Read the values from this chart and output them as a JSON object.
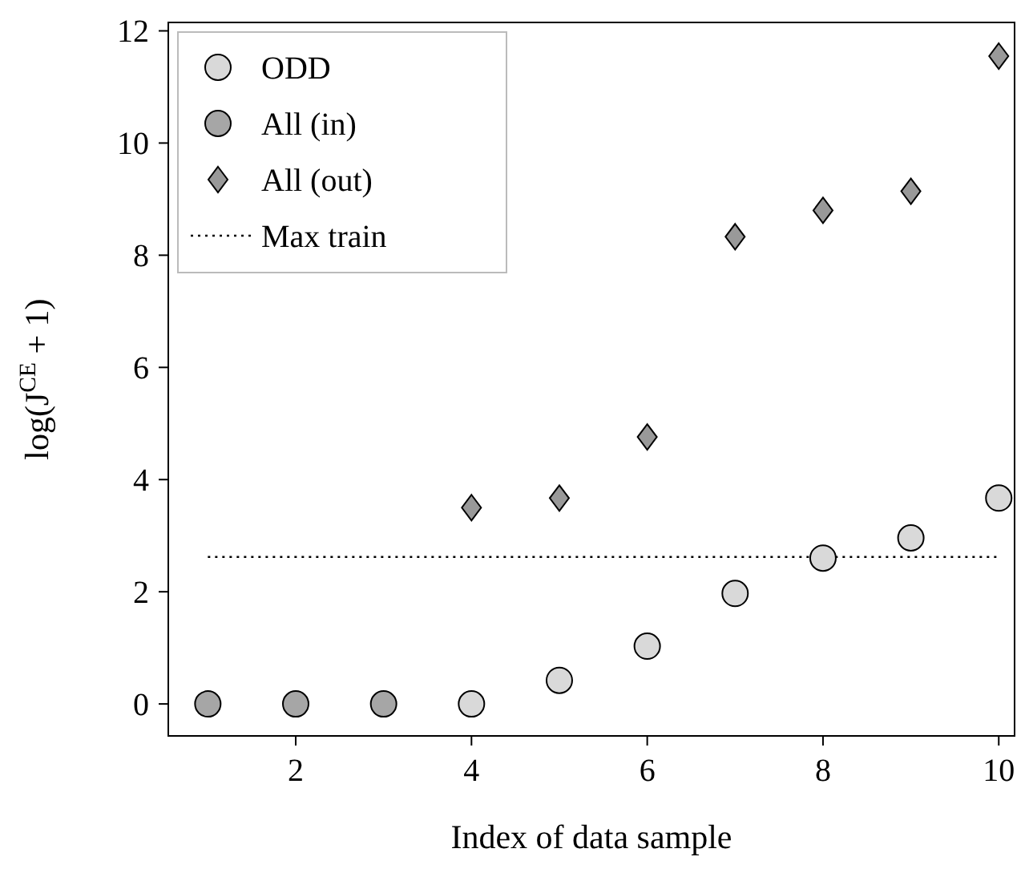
{
  "chart_data": {
    "type": "scatter",
    "xlabel": "Index of data sample",
    "ylabel": "log(J$^{CE}$ + 1)",
    "xlim": [
      0.55,
      10.18
    ],
    "ylim": [
      -0.57,
      12.15
    ],
    "xticks": [
      2,
      4,
      6,
      8,
      10
    ],
    "yticks": [
      0,
      2,
      4,
      6,
      8,
      10,
      12
    ],
    "grid": false,
    "legend": "top left",
    "series": [
      {
        "name": "ODD",
        "color": "#d9d9d9",
        "marker": "circle",
        "x": [
          4,
          5,
          6,
          7,
          8,
          9,
          10
        ],
        "values": [
          0,
          0.42,
          1.03,
          1.97,
          2.6,
          2.96,
          3.67
        ]
      },
      {
        "name": "All (in)",
        "color": "#a6a6a6",
        "marker": "circle",
        "x": [
          1,
          2,
          3
        ],
        "values": [
          0,
          0,
          0
        ]
      },
      {
        "name": "All (out)",
        "color": "#999999",
        "marker": "diamond",
        "x": [
          4,
          5,
          6,
          7,
          8,
          9,
          10
        ],
        "values": [
          3.5,
          3.67,
          4.76,
          8.33,
          8.8,
          9.14,
          11.55
        ]
      }
    ],
    "ref_lines": [
      {
        "axis": "y",
        "value": 2.62,
        "label": "Max train",
        "line_style": "dotted",
        "color": "#000000"
      }
    ]
  }
}
